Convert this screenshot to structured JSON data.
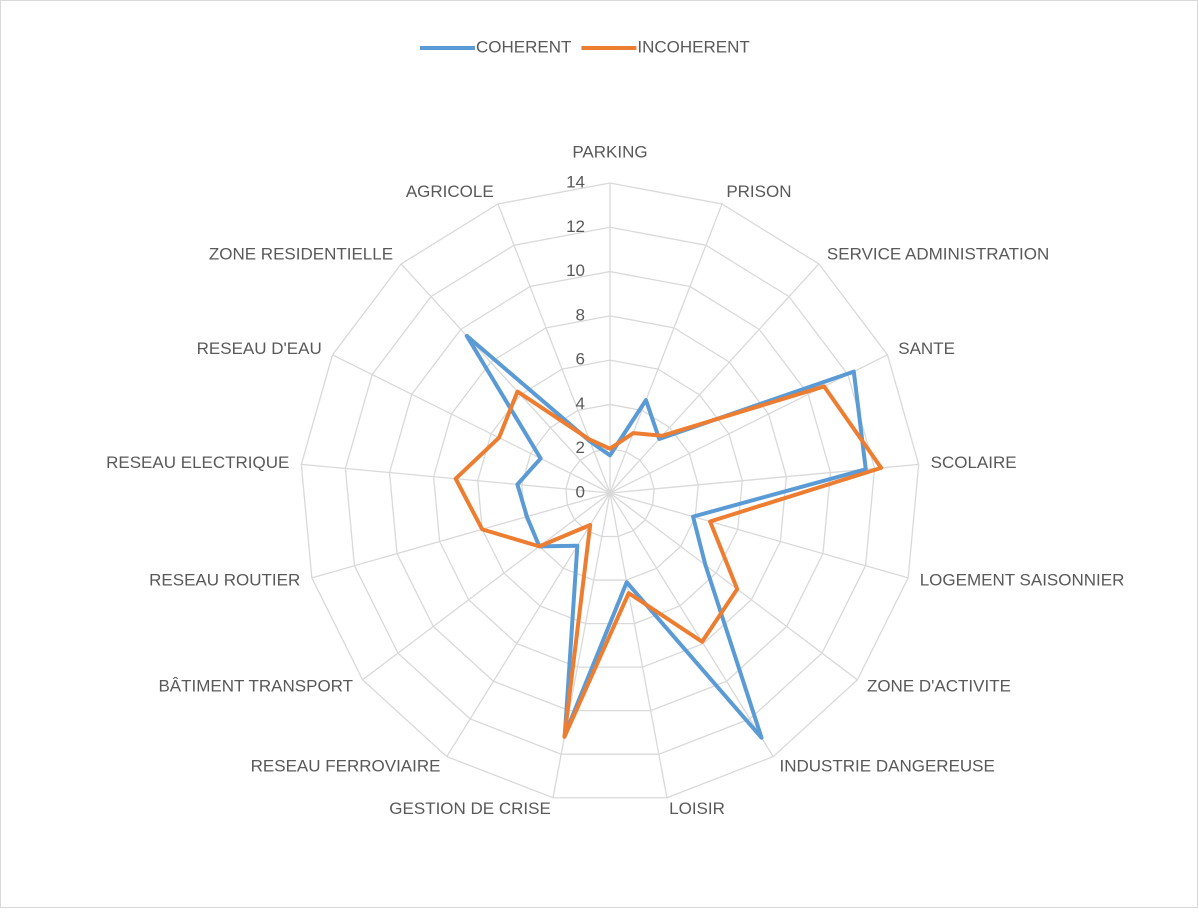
{
  "chart_data": {
    "type": "radar",
    "categories": [
      "PARKING",
      "PRISON",
      "SERVICE ADMINISTRATION",
      "SANTE",
      "SCOLAIRE",
      "LOGEMENT SAISONNIER",
      "ZONE D'ACTIVITE",
      "INDUSTRIE DANGEREUSE",
      "LOISIR",
      "GESTION DE CRISE",
      "RESEAU FERROVIAIRE",
      "BÂTIMENT  TRANSPORT",
      "RESEAU ROUTIER",
      "RESEAU ELECTRIQUE",
      "RESEAU D'EAU",
      "ZONE RESIDENTIELLE",
      "AGRICOLE"
    ],
    "series": [
      {
        "name": "COHERENT",
        "color": "#5b9bd5",
        "values": [
          1.7,
          4.5,
          3.3,
          12.3,
          11.6,
          3.9,
          5.4,
          13,
          4.1,
          11.1,
          2.8,
          4.0,
          3.9,
          4.2,
          3.5,
          9.6,
          2.5
        ]
      },
      {
        "name": "INCOHERENT",
        "color": "#ed7d31",
        "values": [
          2,
          2.9,
          3.5,
          10.8,
          12.3,
          4.7,
          7.2,
          7.9,
          4.6,
          11.2,
          1.7,
          4.0,
          6.0,
          7.0,
          5.6,
          6.2,
          2.6
        ]
      }
    ],
    "ylim": [
      0,
      14
    ],
    "yticks": [
      0,
      2,
      4,
      6,
      8,
      10,
      12,
      14
    ],
    "grid": true,
    "legend": "top"
  }
}
